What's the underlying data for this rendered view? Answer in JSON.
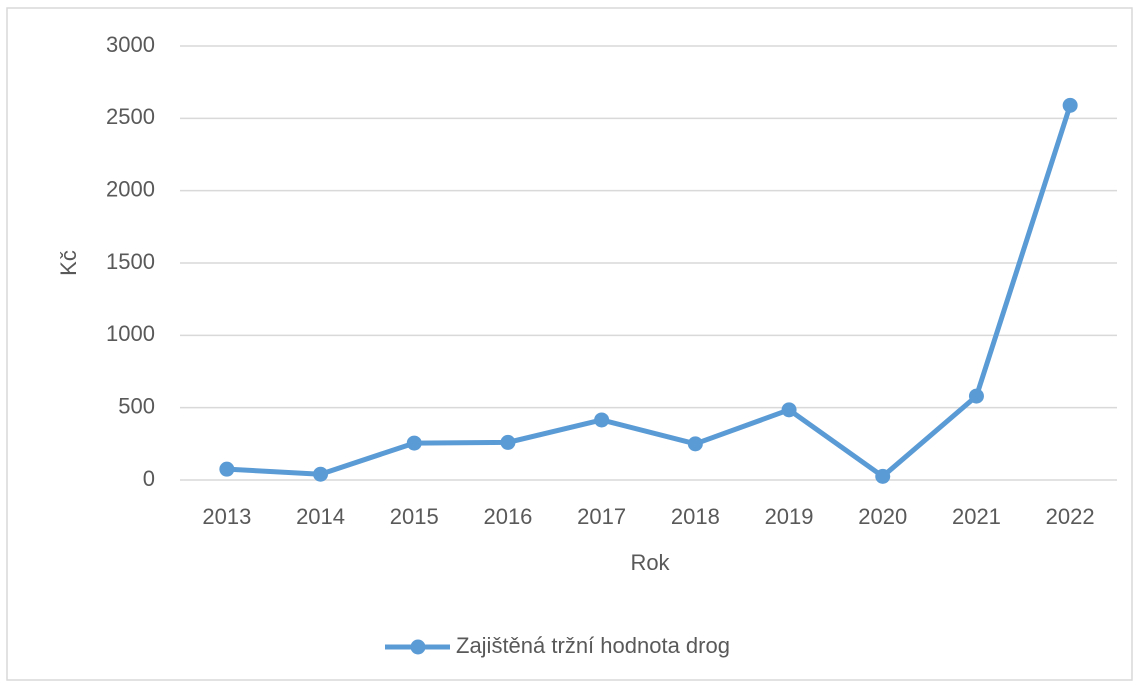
{
  "chart_data": {
    "type": "line",
    "x_label": "Rok",
    "y_label": "Kč",
    "categories": [
      "2013",
      "2014",
      "2015",
      "2016",
      "2017",
      "2018",
      "2019",
      "2020",
      "2021",
      "2022"
    ],
    "series": [
      {
        "name": "Zajištěná tržní hodnota drog",
        "color": "#5b9bd5",
        "values": [
          75,
          40,
          255,
          260,
          415,
          250,
          485,
          25,
          580,
          2590
        ]
      }
    ],
    "ylim": [
      0,
      3000
    ],
    "yticks": [
      0,
      500,
      1000,
      1500,
      2000,
      2500,
      3000
    ],
    "grid": true,
    "legend": "bottom"
  }
}
